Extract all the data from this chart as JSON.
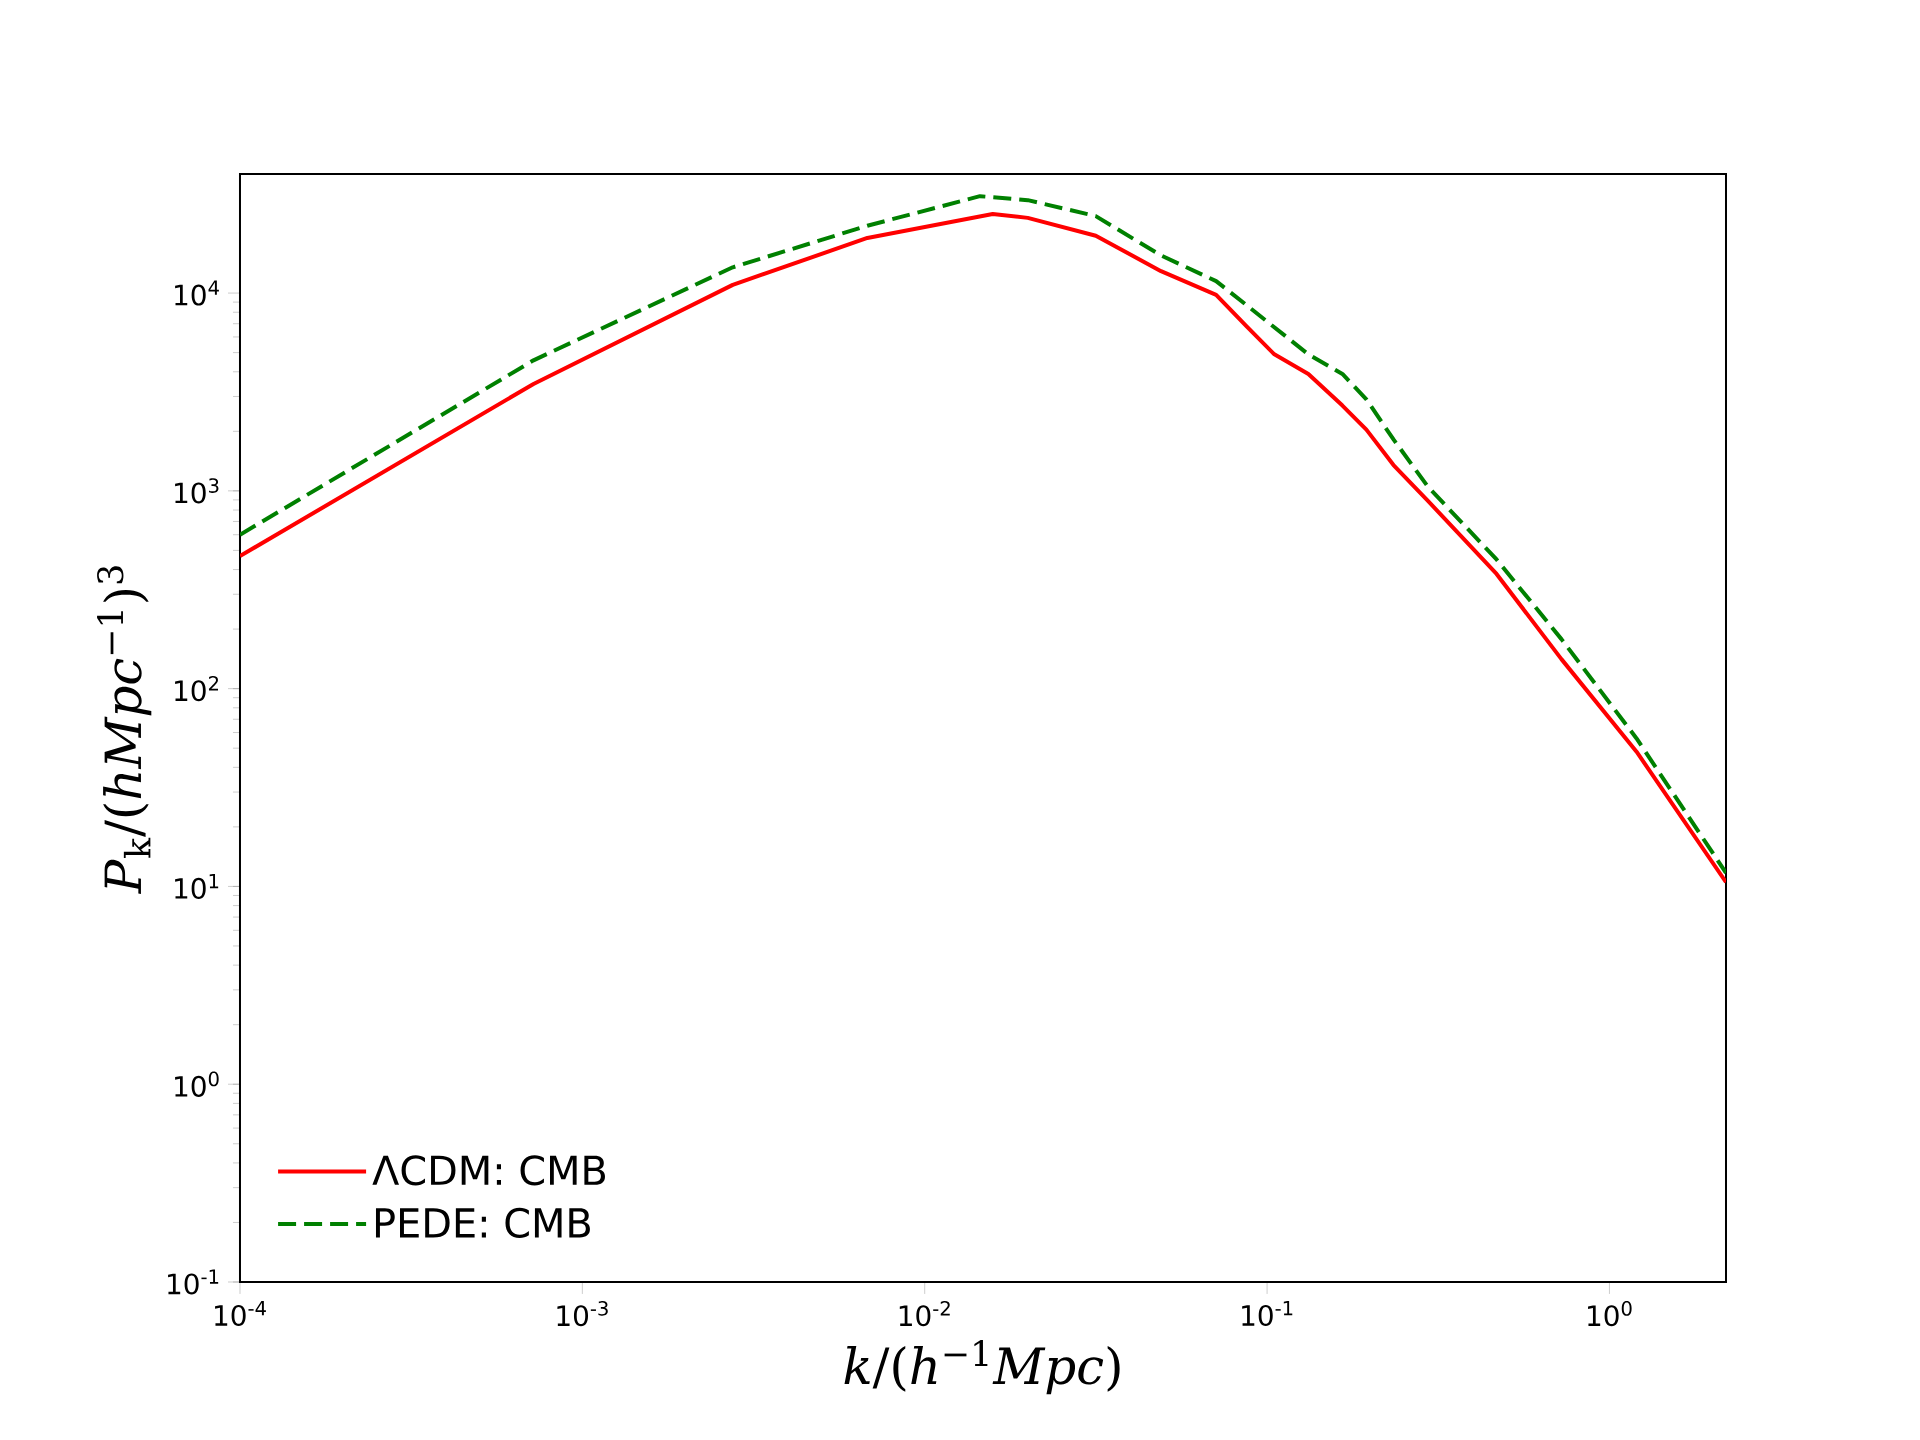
{
  "chart_data": {
    "type": "line",
    "log": "xy",
    "xlabel": "*k*/(*h*$^{−1}$*Mpc*)",
    "ylabel": "*P*$_{k}$/(*hMpc*$^{−1}$)$^{3}$",
    "xlim": [
      0.0001,
      2.19
    ],
    "ylim": [
      0.1,
      40000
    ],
    "xticks": [
      {
        "value": 0.0001,
        "label": "10$^{-4}$"
      },
      {
        "value": 0.001,
        "label": "10$^{-3}$"
      },
      {
        "value": 0.01,
        "label": "10$^{-2}$"
      },
      {
        "value": 0.1,
        "label": "10$^{-1}$"
      },
      {
        "value": 1,
        "label": "10$^{0}$"
      }
    ],
    "yticks": [
      {
        "value": 0.1,
        "label": "10$^{-1}$"
      },
      {
        "value": 1,
        "label": "10$^{0}$"
      },
      {
        "value": 10,
        "label": "10$^{1}$"
      },
      {
        "value": 100,
        "label": "10$^{2}$"
      },
      {
        "value": 1000,
        "label": "10$^{3}$"
      },
      {
        "value": 10000,
        "label": "10$^{4}$"
      }
    ],
    "legend": "bottom left",
    "grid": false,
    "marker": "none",
    "series": [
      {
        "name": "ΛCDM: CMB",
        "color": "#ff0000",
        "line_style": "solid",
        "x": [
          0.0001,
          0.00072,
          0.00275,
          0.0068,
          0.0158,
          0.02,
          0.0316,
          0.049,
          0.071,
          0.087,
          0.105,
          0.132,
          0.166,
          0.195,
          0.234,
          0.295,
          0.468,
          0.724,
          1.2,
          2.19
        ],
        "values": [
          468,
          3470,
          11000,
          19000,
          25100,
          24000,
          19500,
          12900,
          9800,
          6800,
          4900,
          3900,
          2700,
          2040,
          1350,
          890,
          380,
          141,
          48,
          10.5
        ]
      },
      {
        "name": "PEDE: CMB",
        "color": "#008000",
        "line_style": "dashed",
        "x": [
          0.0001,
          0.00072,
          0.00275,
          0.0068,
          0.0145,
          0.02,
          0.0316,
          0.049,
          0.071,
          0.087,
          0.132,
          0.166,
          0.195,
          0.234,
          0.295,
          0.468,
          0.724,
          1.2,
          2.19
        ],
        "values": [
          600,
          4570,
          13500,
          21900,
          30900,
          29500,
          24500,
          15500,
          11500,
          8700,
          4900,
          3900,
          2900,
          1820,
          1050,
          450,
          178,
          56,
          11.7
        ]
      }
    ]
  }
}
